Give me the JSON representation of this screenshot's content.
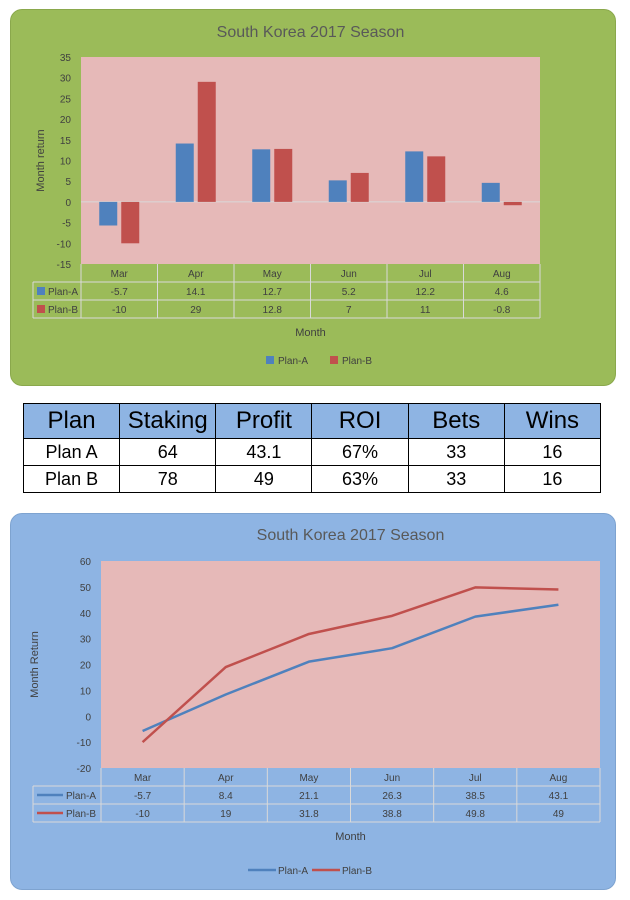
{
  "colors": {
    "plan_a": "#4f81bd",
    "plan_b": "#c0504d",
    "plot_bg": "#e6b9b8",
    "card1_bg": "#9bbb59",
    "card2_bg": "#8eb4e3"
  },
  "chart_data": [
    {
      "type": "bar",
      "title": "South Korea 2017 Season",
      "xlabel": "Month",
      "ylabel": "Month return",
      "ylim": [
        -15,
        35
      ],
      "yticks": [
        -15,
        -10,
        -5,
        0,
        5,
        10,
        15,
        20,
        25,
        30,
        35
      ],
      "grid": false,
      "legend": "bottom",
      "data_table": true,
      "categories": [
        "Mar",
        "Apr",
        "May",
        "Jun",
        "Jul",
        "Aug"
      ],
      "series": [
        {
          "name": "Plan-A",
          "values": [
            -5.7,
            14.1,
            12.7,
            5.2,
            12.2,
            4.6
          ],
          "labels": [
            "-5.7",
            "14.1",
            "12.7",
            "5.2",
            "12.2",
            "4.6"
          ]
        },
        {
          "name": "Plan-B",
          "values": [
            -10,
            29,
            12.8,
            7,
            11,
            -0.8
          ],
          "labels": [
            "-10",
            "29",
            "12.8",
            "7",
            "11",
            "-0.8"
          ]
        }
      ]
    },
    {
      "type": "line",
      "title": "South Korea 2017 Season",
      "xlabel": "Month",
      "ylabel": "Month Return",
      "ylim": [
        -20,
        60
      ],
      "yticks": [
        -20,
        -10,
        0,
        10,
        20,
        30,
        40,
        50,
        60
      ],
      "grid": false,
      "legend": "bottom",
      "data_table": true,
      "categories": [
        "Mar",
        "Apr",
        "May",
        "Jun",
        "Jul",
        "Aug"
      ],
      "series": [
        {
          "name": "Plan-A",
          "values": [
            -5.7,
            8.4,
            21.1,
            26.3,
            38.5,
            43.1
          ],
          "labels": [
            "-5.7",
            "8.4",
            "21.1",
            "26.3",
            "38.5",
            "43.1"
          ]
        },
        {
          "name": "Plan-B",
          "values": [
            -10,
            19,
            31.8,
            38.8,
            49.8,
            49
          ],
          "labels": [
            "-10",
            "19",
            "31.8",
            "38.8",
            "49.8",
            "49"
          ]
        }
      ]
    }
  ],
  "summary_table": {
    "headers": [
      "Plan",
      "Staking",
      "Profit",
      "ROI",
      "Bets",
      "Wins"
    ],
    "rows": [
      [
        "Plan A",
        "64",
        "43.1",
        "67%",
        "33",
        "16"
      ],
      [
        "Plan B",
        "78",
        "49",
        "63%",
        "33",
        "16"
      ]
    ]
  }
}
